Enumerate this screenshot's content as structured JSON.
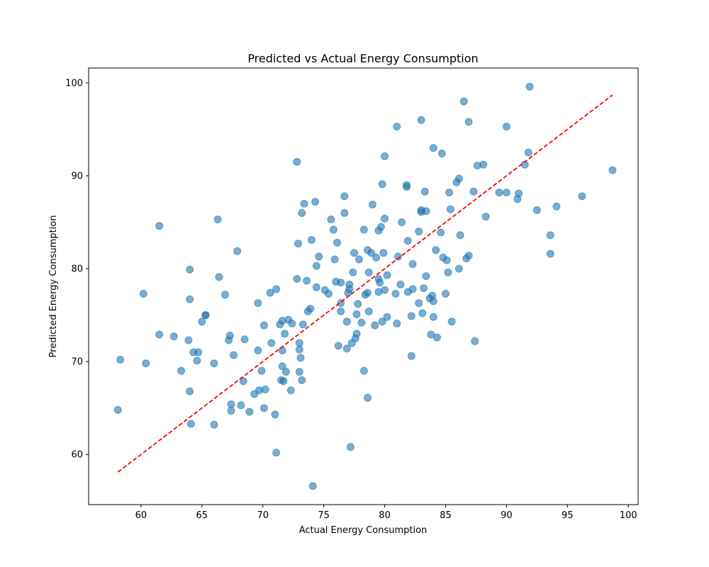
{
  "chart_data": {
    "type": "scatter",
    "title": "Predicted vs Actual Energy Consumption",
    "xlabel": "Actual Energy Consumption",
    "ylabel": "Predicted Energy Consumption",
    "xlim": [
      55.7,
      100.8
    ],
    "ylim": [
      54.6,
      101.6
    ],
    "x_ticks": [
      60,
      65,
      70,
      75,
      80,
      85,
      90,
      95,
      100
    ],
    "y_ticks": [
      60,
      70,
      80,
      90,
      100
    ],
    "grid": false,
    "point_color": "#1f77b4",
    "point_alpha": 0.6,
    "reference_line": {
      "x": [
        58.1,
        98.7
      ],
      "y": [
        58.1,
        98.7
      ],
      "color": "#ff0000",
      "style": "dashed"
    },
    "series": [
      {
        "points": [
          [
            58.1,
            64.8
          ],
          [
            58.3,
            70.2
          ],
          [
            60.2,
            77.3
          ],
          [
            60.4,
            69.8
          ],
          [
            61.5,
            84.6
          ],
          [
            61.5,
            72.9
          ],
          [
            62.7,
            72.7
          ],
          [
            63.3,
            69.0
          ],
          [
            63.9,
            72.3
          ],
          [
            64.0,
            79.9
          ],
          [
            64.0,
            76.7
          ],
          [
            64.0,
            66.8
          ],
          [
            64.1,
            63.3
          ],
          [
            64.3,
            71.0
          ],
          [
            64.6,
            70.1
          ],
          [
            64.7,
            71.0
          ],
          [
            65.0,
            74.3
          ],
          [
            65.3,
            75.0
          ],
          [
            65.3,
            75.0
          ],
          [
            66.0,
            69.8
          ],
          [
            66.0,
            63.2
          ],
          [
            66.3,
            85.3
          ],
          [
            66.4,
            79.1
          ],
          [
            66.9,
            77.2
          ],
          [
            67.2,
            72.3
          ],
          [
            67.3,
            72.8
          ],
          [
            67.4,
            65.4
          ],
          [
            67.4,
            64.7
          ],
          [
            67.6,
            70.7
          ],
          [
            67.9,
            81.9
          ],
          [
            68.2,
            65.3
          ],
          [
            68.4,
            67.9
          ],
          [
            68.5,
            72.4
          ],
          [
            68.9,
            64.6
          ],
          [
            69.3,
            66.5
          ],
          [
            69.6,
            76.3
          ],
          [
            69.6,
            71.2
          ],
          [
            69.7,
            66.9
          ],
          [
            69.9,
            69.0
          ],
          [
            70.1,
            73.9
          ],
          [
            70.1,
            65.0
          ],
          [
            70.2,
            67.0
          ],
          [
            70.6,
            77.4
          ],
          [
            70.7,
            72.0
          ],
          [
            71.0,
            64.3
          ],
          [
            71.1,
            77.8
          ],
          [
            71.1,
            60.2
          ],
          [
            71.4,
            74.0
          ],
          [
            71.5,
            68.0
          ],
          [
            71.6,
            74.4
          ],
          [
            71.6,
            71.2
          ],
          [
            71.6,
            69.5
          ],
          [
            71.7,
            67.9
          ],
          [
            71.8,
            73.0
          ],
          [
            71.9,
            68.9
          ],
          [
            72.1,
            74.5
          ],
          [
            72.3,
            66.9
          ],
          [
            72.4,
            74.1
          ],
          [
            72.8,
            91.5
          ],
          [
            72.8,
            78.9
          ],
          [
            72.9,
            82.7
          ],
          [
            73.0,
            72.0
          ],
          [
            73.0,
            71.3
          ],
          [
            73.0,
            68.9
          ],
          [
            73.1,
            70.4
          ],
          [
            73.2,
            68.0
          ],
          [
            73.2,
            86.0
          ],
          [
            73.3,
            74.0
          ],
          [
            73.4,
            87.0
          ],
          [
            73.6,
            78.7
          ],
          [
            73.7,
            75.4
          ],
          [
            73.9,
            75.7
          ],
          [
            74.0,
            83.1
          ],
          [
            74.1,
            56.6
          ],
          [
            74.3,
            87.2
          ],
          [
            74.4,
            78.0
          ],
          [
            74.4,
            80.3
          ],
          [
            74.6,
            81.3
          ],
          [
            75.1,
            77.7
          ],
          [
            75.4,
            77.3
          ],
          [
            75.6,
            85.3
          ],
          [
            75.8,
            84.2
          ],
          [
            75.9,
            81.0
          ],
          [
            76.0,
            78.6
          ],
          [
            76.1,
            82.8
          ],
          [
            76.2,
            71.7
          ],
          [
            76.4,
            78.5
          ],
          [
            76.4,
            76.3
          ],
          [
            76.4,
            75.4
          ],
          [
            76.7,
            87.8
          ],
          [
            76.7,
            86.0
          ],
          [
            76.9,
            74.3
          ],
          [
            76.9,
            71.4
          ],
          [
            77.0,
            77.4
          ],
          [
            77.1,
            77.8
          ],
          [
            77.1,
            78.3
          ],
          [
            77.2,
            60.8
          ],
          [
            77.3,
            72.0
          ],
          [
            77.4,
            79.6
          ],
          [
            77.5,
            81.7
          ],
          [
            77.6,
            72.5
          ],
          [
            77.7,
            73.0
          ],
          [
            77.7,
            75.1
          ],
          [
            77.8,
            76.2
          ],
          [
            77.9,
            81.0
          ],
          [
            78.1,
            74.2
          ],
          [
            78.3,
            84.2
          ],
          [
            78.3,
            69.0
          ],
          [
            78.4,
            77.2
          ],
          [
            78.6,
            66.1
          ],
          [
            78.6,
            77.4
          ],
          [
            78.6,
            82.0
          ],
          [
            78.7,
            75.4
          ],
          [
            78.7,
            79.6
          ],
          [
            78.9,
            81.7
          ],
          [
            79.0,
            86.9
          ],
          [
            79.2,
            73.9
          ],
          [
            79.3,
            81.2
          ],
          [
            79.5,
            84.1
          ],
          [
            79.5,
            77.5
          ],
          [
            79.5,
            78.9
          ],
          [
            79.6,
            78.5
          ],
          [
            79.7,
            84.5
          ],
          [
            79.8,
            89.1
          ],
          [
            79.8,
            74.3
          ],
          [
            79.9,
            81.7
          ],
          [
            80.0,
            85.4
          ],
          [
            80.0,
            77.7
          ],
          [
            80.0,
            92.1
          ],
          [
            80.2,
            79.3
          ],
          [
            80.2,
            74.8
          ],
          [
            80.9,
            77.3
          ],
          [
            81.0,
            95.3
          ],
          [
            81.0,
            74.1
          ],
          [
            81.1,
            81.3
          ],
          [
            81.3,
            78.3
          ],
          [
            81.4,
            85.0
          ],
          [
            81.8,
            89.0
          ],
          [
            81.8,
            88.8
          ],
          [
            81.9,
            83.0
          ],
          [
            81.9,
            77.5
          ],
          [
            82.2,
            74.9
          ],
          [
            82.2,
            70.6
          ],
          [
            82.3,
            80.5
          ],
          [
            82.3,
            77.8
          ],
          [
            82.8,
            84.0
          ],
          [
            82.8,
            76.3
          ],
          [
            83.0,
            96.0
          ],
          [
            83.0,
            86.1
          ],
          [
            83.0,
            86.3
          ],
          [
            83.1,
            75.2
          ],
          [
            83.2,
            77.9
          ],
          [
            83.3,
            88.3
          ],
          [
            83.4,
            86.2
          ],
          [
            83.4,
            79.2
          ],
          [
            83.7,
            76.8
          ],
          [
            83.8,
            72.9
          ],
          [
            83.9,
            77.1
          ],
          [
            84.0,
            74.8
          ],
          [
            84.0,
            76.5
          ],
          [
            84.0,
            93.0
          ],
          [
            84.2,
            82.0
          ],
          [
            84.3,
            72.6
          ],
          [
            84.6,
            83.9
          ],
          [
            84.7,
            92.4
          ],
          [
            84.8,
            81.2
          ],
          [
            85.0,
            77.3
          ],
          [
            85.1,
            80.9
          ],
          [
            85.2,
            79.6
          ],
          [
            85.3,
            88.2
          ],
          [
            85.4,
            86.4
          ],
          [
            85.5,
            74.3
          ],
          [
            85.9,
            89.3
          ],
          [
            86.1,
            80.0
          ],
          [
            86.1,
            89.7
          ],
          [
            86.2,
            83.6
          ],
          [
            86.5,
            98.0
          ],
          [
            86.7,
            81.1
          ],
          [
            86.9,
            95.8
          ],
          [
            86.9,
            81.4
          ],
          [
            87.3,
            88.3
          ],
          [
            87.4,
            72.2
          ],
          [
            87.6,
            91.1
          ],
          [
            88.1,
            91.2
          ],
          [
            88.3,
            85.6
          ],
          [
            89.4,
            88.2
          ],
          [
            90.0,
            95.3
          ],
          [
            90.0,
            88.2
          ],
          [
            90.9,
            87.5
          ],
          [
            91.0,
            88.1
          ],
          [
            91.5,
            91.2
          ],
          [
            91.8,
            92.5
          ],
          [
            91.9,
            99.6
          ],
          [
            92.5,
            86.3
          ],
          [
            93.6,
            83.6
          ],
          [
            93.6,
            81.6
          ],
          [
            94.1,
            86.7
          ],
          [
            96.2,
            87.8
          ],
          [
            98.7,
            90.6
          ]
        ]
      }
    ]
  }
}
